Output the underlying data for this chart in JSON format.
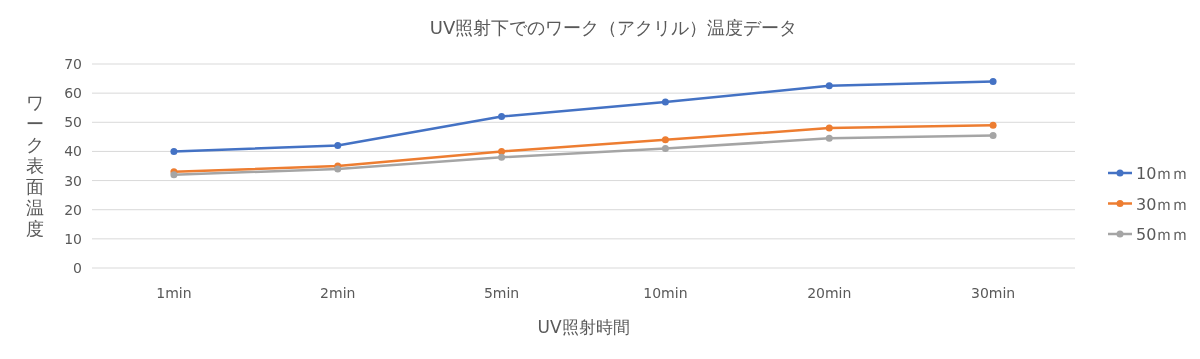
{
  "chart_data": {
    "type": "line",
    "title": "UV照射下でのワーク（アクリル）温度データ",
    "xlabel": "UV照射時間",
    "ylabel": "ワーク表面温度",
    "categories": [
      "1min",
      "2min",
      "5min",
      "10min",
      "20min",
      "30min"
    ],
    "series": [
      {
        "name": "10ｍｍ",
        "color": "#4472c4",
        "values": [
          40,
          42,
          52,
          57,
          62.5,
          64
        ]
      },
      {
        "name": "30ｍｍ",
        "color": "#ed7d31",
        "values": [
          33,
          35,
          40,
          44,
          48,
          49
        ]
      },
      {
        "name": "50ｍｍ",
        "color": "#a5a5a5",
        "values": [
          32,
          34,
          38,
          41,
          44.5,
          45.5
        ]
      }
    ],
    "ylim": [
      0,
      70
    ],
    "yticks": [
      0,
      10,
      20,
      30,
      40,
      50,
      60,
      70
    ],
    "grid": "y",
    "legend": "right",
    "marker": "circle",
    "line_style": "solid"
  }
}
